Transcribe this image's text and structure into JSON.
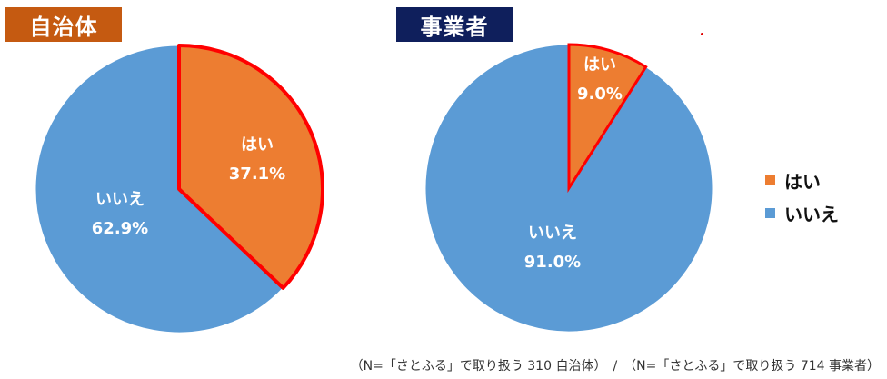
{
  "colors": {
    "yes": "#ED7D31",
    "no": "#5B9BD5",
    "highlight_border": "#FF0000",
    "badge_left": "#C55A11",
    "badge_right": "#0F1F5C"
  },
  "chart_data": [
    {
      "type": "pie",
      "title": "自治体",
      "slices": [
        {
          "label": "はい",
          "value": 37.1,
          "value_label": "37.1%"
        },
        {
          "label": "いいえ",
          "value": 62.9,
          "value_label": "62.9%"
        }
      ]
    },
    {
      "type": "pie",
      "title": "事業者",
      "slices": [
        {
          "label": "はい",
          "value": 9.0,
          "value_label": "9.0%"
        },
        {
          "label": "いいえ",
          "value": 91.0,
          "value_label": "91.0%"
        }
      ]
    }
  ],
  "legend": {
    "placement": "right",
    "items": [
      {
        "label": "はい"
      },
      {
        "label": "いいえ"
      }
    ]
  },
  "footnote": "（N=「さとふる」で取り扱う 310 自治体）　/　（N=「さとふる」で取り扱う 714 事業者）"
}
